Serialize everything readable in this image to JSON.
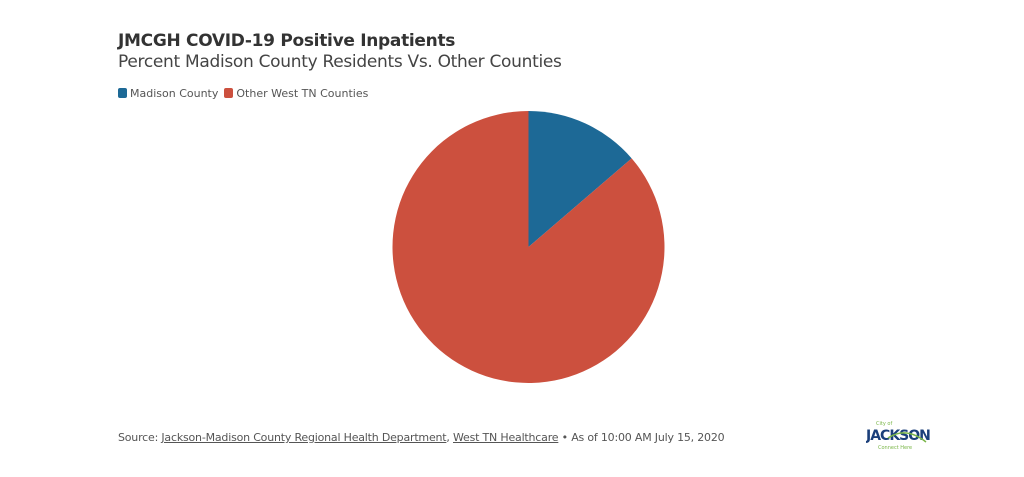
{
  "chart_data": {
    "type": "pie",
    "title": "JMCGH COVID-19 Positive Inpatients",
    "subtitle": "Percent Madison County Residents Vs. Other Counties",
    "categories": [
      "Madison County",
      "Other West TN Counties"
    ],
    "values": [
      13.7,
      86.3
    ],
    "colors": [
      "#1d6996",
      "#cc503e"
    ],
    "legend_position": "top-left"
  },
  "source": {
    "prefix": "Source: ",
    "link1": "Jackson-Madison County Regional Health Department",
    "sep": ", ",
    "link2": "West TN Healthcare",
    "suffix": " • As of 10:00 AM July 15, 2020"
  },
  "logo": {
    "top": "City of",
    "main": "JACKSON",
    "tagline": "Connect Here"
  }
}
